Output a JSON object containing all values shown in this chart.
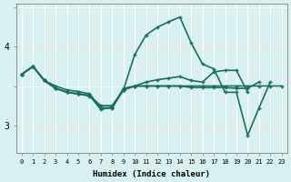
{
  "xlabel": "Humidex (Indice chaleur)",
  "bg_color": "#d8f0f0",
  "grid_color_major": "#ff9999",
  "grid_color_minor": "#ffffff",
  "line_color": "#1a7060",
  "x_ticks": [
    0,
    1,
    2,
    3,
    4,
    5,
    6,
    7,
    8,
    9,
    10,
    11,
    12,
    13,
    14,
    15,
    16,
    17,
    18,
    19,
    20,
    21,
    22,
    23
  ],
  "ylim": [
    2.65,
    4.55
  ],
  "yticks": [
    3,
    4
  ],
  "lines": [
    [
      3.65,
      3.75,
      3.57,
      3.5,
      3.45,
      3.43,
      3.4,
      3.22,
      3.22,
      3.47,
      3.5,
      3.5,
      3.5,
      3.5,
      3.5,
      3.5,
      3.5,
      3.5,
      3.5,
      3.5,
      3.5,
      3.5,
      3.5,
      3.5
    ],
    [
      3.65,
      3.75,
      3.57,
      3.47,
      3.42,
      3.4,
      3.38,
      3.2,
      3.23,
      3.45,
      3.9,
      4.15,
      4.25,
      4.32,
      4.38,
      4.05,
      3.78,
      3.72,
      3.42,
      3.42,
      2.87,
      3.22,
      3.55,
      null
    ],
    [
      3.65,
      3.75,
      3.57,
      3.47,
      3.42,
      3.4,
      3.37,
      3.25,
      3.25,
      3.45,
      3.5,
      3.55,
      3.58,
      3.6,
      3.62,
      3.57,
      3.55,
      3.68,
      3.7,
      3.7,
      3.42,
      null,
      null,
      null
    ],
    [
      3.65,
      3.75,
      3.57,
      3.47,
      3.42,
      3.4,
      3.38,
      3.22,
      3.22,
      3.45,
      3.5,
      3.5,
      3.5,
      3.5,
      3.5,
      3.48,
      3.48,
      3.48,
      3.48,
      3.47,
      3.47,
      3.55,
      null,
      null
    ]
  ]
}
